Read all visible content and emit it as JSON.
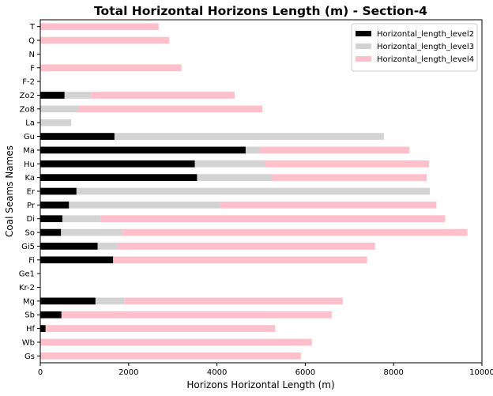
{
  "chart_data": {
    "type": "bar",
    "orientation": "horizontal",
    "stacked": true,
    "title": "Total Horizontal Horizons Length (m) - Section-4",
    "xlabel": "Horizons Horizontal Length (m)",
    "ylabel": "Coal Seams Names",
    "xlim": [
      0,
      10000
    ],
    "xticks": [
      "0",
      "2000",
      "4000",
      "6000",
      "8000",
      "10000"
    ],
    "grid": false,
    "legend_position": "top-right",
    "categories": [
      "Gs",
      "Wb",
      "Hf",
      "Sb",
      "Mg",
      "Kr-2",
      "Ge1",
      "Fi",
      "Gi5",
      "So",
      "Di",
      "Pr",
      "Er",
      "Ka",
      "Hu",
      "Ma",
      "Gu",
      "La",
      "Zo8",
      "Zo2",
      "F-2",
      "F",
      "N",
      "Q",
      "T"
    ],
    "series": [
      {
        "name": "Horizontal_length_level2",
        "color": "#000000",
        "values": [
          0,
          0,
          120,
          480,
          1250,
          0,
          0,
          1650,
          1300,
          470,
          500,
          650,
          820,
          3550,
          3500,
          4650,
          1680,
          0,
          0,
          550,
          0,
          0,
          0,
          0,
          0
        ]
      },
      {
        "name": "Horizontal_length_level3",
        "color": "#d3d3d3",
        "values": [
          0,
          0,
          0,
          0,
          650,
          0,
          0,
          0,
          450,
          1380,
          870,
          3420,
          8000,
          1700,
          1580,
          330,
          6100,
          700,
          850,
          600,
          0,
          0,
          0,
          0,
          0
        ]
      },
      {
        "name": "Horizontal_length_level4",
        "color": "#ffc0cb",
        "values": [
          5900,
          6150,
          5200,
          6120,
          4950,
          0,
          0,
          5750,
          5830,
          7820,
          7800,
          4900,
          0,
          3500,
          3720,
          3380,
          0,
          0,
          4180,
          3250,
          0,
          3200,
          0,
          2920,
          2680
        ]
      }
    ]
  }
}
